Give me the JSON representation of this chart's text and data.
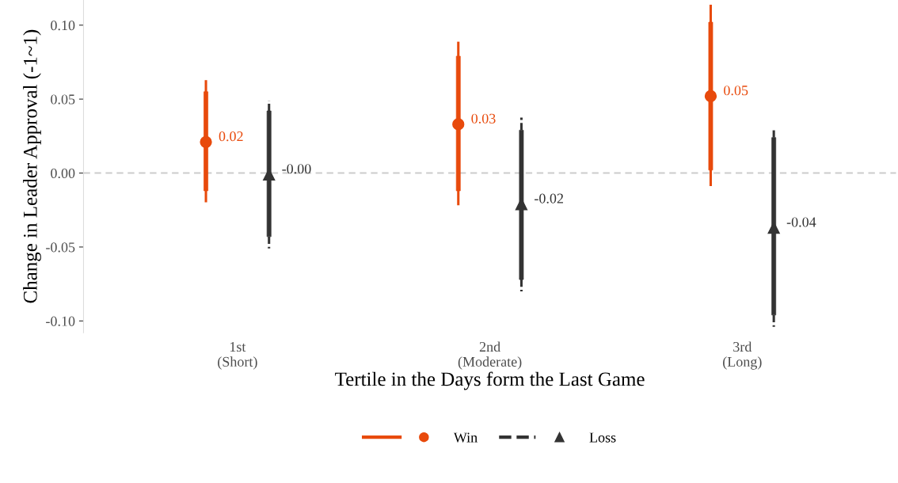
{
  "chart_data": {
    "type": "box",
    "xlabel": "Tertile in the Days form the Last Game",
    "ylabel": "Change in Leader Approval (-1~1)",
    "categories": [
      "1st\n(Short)",
      "2nd\n(Moderate)",
      "3rd\n(Long)"
    ],
    "ylim": [
      -0.108,
      0.117
    ],
    "yticks": [
      {
        "value": -0.1,
        "label": "-0.10"
      },
      {
        "value": -0.05,
        "label": "-0.05"
      },
      {
        "value": 0,
        "label": "0.00"
      },
      {
        "value": 0.05,
        "label": "0.05"
      },
      {
        "value": 0.1,
        "label": "0.10"
      }
    ],
    "grid": false,
    "legend": "bottom",
    "ref_lines": [
      {
        "axis": "y",
        "value": 0,
        "color": "#cccccc",
        "line_style": "dashed"
      }
    ],
    "series": [
      {
        "name": "Win",
        "color": "#e84a0c",
        "marker": "circle",
        "line_style": "solid",
        "value_labels": [
          "0.02",
          "0.03",
          "0.05"
        ],
        "boxes": [
          {
            "low": -0.019,
            "q1": -0.012,
            "median": 0.021,
            "q3": 0.055,
            "high": 0.062
          },
          {
            "low": -0.021,
            "q1": -0.012,
            "median": 0.033,
            "q3": 0.079,
            "high": 0.088
          },
          {
            "low": -0.008,
            "q1": 0.002,
            "median": 0.052,
            "q3": 0.102,
            "high": 0.113
          }
        ]
      },
      {
        "name": "Loss",
        "color": "#333333",
        "marker": "triangle",
        "line_style": "dashed",
        "value_labels": [
          "-0.00",
          "-0.02",
          "-0.04"
        ],
        "boxes": [
          {
            "low": -0.051,
            "q1": -0.043,
            "median": -0.001,
            "q3": 0.042,
            "high": 0.049
          },
          {
            "low": -0.08,
            "q1": -0.072,
            "median": -0.021,
            "q3": 0.029,
            "high": 0.038
          },
          {
            "low": -0.104,
            "q1": -0.096,
            "median": -0.037,
            "q3": 0.024,
            "high": 0.029
          }
        ]
      }
    ]
  }
}
